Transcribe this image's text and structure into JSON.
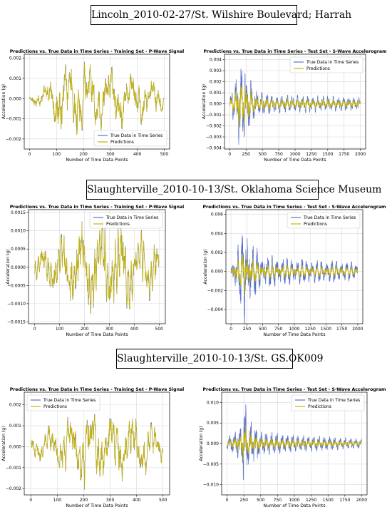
{
  "sections": [
    {
      "title": "Lincoln_2010-02-27/St. Wilshire Boulevard; Harrah"
    },
    {
      "title": "Slaughterville_2010-10-13/St. Oklahoma Science Museum"
    },
    {
      "title": "Slaughterville_2010-10-13/St. GS.OK009"
    }
  ],
  "colors": {
    "true": "#5a72c8",
    "pred": "#c8b400",
    "grid": "#d8d8d8"
  },
  "chart_data": [
    {
      "type": "line",
      "title": "Predictions vs. True Data in Time Series - Training Set - P-Wave Signal",
      "xlabel": "Number of Time Data Points",
      "ylabel": "Acceleration (g)",
      "xlim": [
        -20,
        520
      ],
      "ylim": [
        -0.0025,
        0.0022
      ],
      "xticks": [
        0,
        100,
        200,
        300,
        400,
        500
      ],
      "xtick_labels": [
        "0",
        "100",
        "200",
        "300",
        "400",
        "500"
      ],
      "yticks": [
        -0.002,
        -0.001,
        0,
        0.001,
        0.002
      ],
      "ytick_labels": [
        "−0.002",
        "−0.001",
        "0.000",
        "0.001",
        "0.002"
      ],
      "legend_position": "lower-right",
      "grid": true,
      "series": [
        {
          "name": "True Data in Time Series"
        },
        {
          "name": "Predictions"
        }
      ],
      "n_points": 500,
      "amp_envelope": [
        [
          0,
          0.0003
        ],
        [
          50,
          0.0006
        ],
        [
          100,
          0.0018
        ],
        [
          150,
          0.002
        ],
        [
          250,
          0.0017
        ],
        [
          350,
          0.0015
        ],
        [
          450,
          0.0012
        ],
        [
          500,
          0.0006
        ]
      ],
      "seed": 11,
      "pred_scale": 0.98
    },
    {
      "type": "line",
      "title": "Predictions vs. True Data in Time Series - Test Set - S-Wave Accelerogram",
      "xlabel": "Number of Time Data Points",
      "ylabel": "Acceleration (g)",
      "xlim": [
        -80,
        2080
      ],
      "ylim": [
        -0.0041,
        0.0045
      ],
      "xticks": [
        0,
        250,
        500,
        750,
        1000,
        1250,
        1500,
        1750,
        2000
      ],
      "xtick_labels": [
        "0",
        "250",
        "500",
        "750",
        "1000",
        "1250",
        "1500",
        "1750",
        "2000"
      ],
      "yticks": [
        -0.004,
        -0.003,
        -0.002,
        -0.001,
        0,
        0.001,
        0.002,
        0.003,
        0.004
      ],
      "ytick_labels": [
        "−0.004",
        "−0.003",
        "−0.002",
        "−0.001",
        "0.000",
        "0.001",
        "0.002",
        "0.003",
        "0.004"
      ],
      "legend_position": "top-right",
      "grid": true,
      "series": [
        {
          "name": "True Data in Time Series"
        },
        {
          "name": "Predictions"
        }
      ],
      "n_points": 2000,
      "amp_envelope": [
        [
          0,
          0.0006
        ],
        [
          80,
          0.002
        ],
        [
          150,
          0.0042
        ],
        [
          250,
          0.003
        ],
        [
          400,
          0.0012
        ],
        [
          700,
          0.0008
        ],
        [
          1200,
          0.0008
        ],
        [
          2000,
          0.0006
        ]
      ],
      "seed": 23,
      "pred_scale": 0.55
    },
    {
      "type": "line",
      "title": "Predictions vs. True Data in Time Series - Training Set - P-Wave Signal",
      "xlabel": "Number of Time Data Points",
      "ylabel": "Acceleration (g)",
      "xlim": [
        -25,
        525
      ],
      "ylim": [
        -0.00155,
        0.00158
      ],
      "xticks": [
        0,
        100,
        200,
        300,
        400,
        500
      ],
      "xtick_labels": [
        "0",
        "100",
        "200",
        "300",
        "400",
        "500"
      ],
      "yticks": [
        -0.0015,
        -0.001,
        -0.0005,
        0,
        0.0005,
        0.001,
        0.0015
      ],
      "ytick_labels": [
        "−0.0015",
        "−0.0010",
        "−0.0005",
        "0.0000",
        "0.0005",
        "0.0010",
        "0.0015"
      ],
      "legend_position": "top-right",
      "grid": true,
      "series": [
        {
          "name": "True Data in Time Series"
        },
        {
          "name": "Predictions"
        }
      ],
      "n_points": 500,
      "amp_envelope": [
        [
          0,
          0.0004
        ],
        [
          80,
          0.0008
        ],
        [
          200,
          0.0013
        ],
        [
          260,
          0.0014
        ],
        [
          400,
          0.0011
        ],
        [
          500,
          0.0008
        ]
      ],
      "seed": 37,
      "pred_scale": 0.96
    },
    {
      "type": "line",
      "title": "Predictions vs. True Data in Time Series - Test Set - S-Wave Accelerogram",
      "xlabel": "Number of Time Data Points",
      "ylabel": "Acceleration (g)",
      "xlim": [
        -80,
        2080
      ],
      "ylim": [
        -0.0055,
        0.0065
      ],
      "xticks": [
        0,
        250,
        500,
        750,
        1000,
        1250,
        1500,
        1750,
        2000
      ],
      "xtick_labels": [
        "0",
        "250",
        "500",
        "750",
        "1000",
        "1250",
        "1500",
        "1750",
        "2000"
      ],
      "yticks": [
        -0.004,
        -0.002,
        0,
        0.002,
        0.004,
        0.006
      ],
      "ytick_labels": [
        "−0.004",
        "−0.002",
        "0.000",
        "0.002",
        "0.004",
        "0.006"
      ],
      "legend_position": "top-right",
      "grid": true,
      "series": [
        {
          "name": "True Data in Time Series"
        },
        {
          "name": "Predictions"
        }
      ],
      "n_points": 2000,
      "amp_envelope": [
        [
          0,
          0.0008
        ],
        [
          120,
          0.003
        ],
        [
          200,
          0.0058
        ],
        [
          300,
          0.004
        ],
        [
          450,
          0.002
        ],
        [
          800,
          0.0015
        ],
        [
          1300,
          0.0012
        ],
        [
          2000,
          0.001
        ]
      ],
      "seed": 53,
      "pred_scale": 0.45
    },
    {
      "type": "line",
      "title": "Predictions vs. True Data in Time Series - Training Set - P-Wave Signal",
      "xlabel": "Number of Time Data Points",
      "ylabel": "Acceleration (g)",
      "xlim": [
        -25,
        525
      ],
      "ylim": [
        -0.0023,
        0.0026
      ],
      "xticks": [
        0,
        100,
        200,
        300,
        400,
        500
      ],
      "xtick_labels": [
        "0",
        "100",
        "200",
        "300",
        "400",
        "500"
      ],
      "yticks": [
        -0.002,
        -0.001,
        0,
        0.001,
        0.002
      ],
      "ytick_labels": [
        "−0.002",
        "−0.001",
        "0.000",
        "0.001",
        "0.002"
      ],
      "legend_position": "top-left",
      "grid": true,
      "series": [
        {
          "name": "True Data in Time Series"
        },
        {
          "name": "Predictions"
        }
      ],
      "n_points": 500,
      "amp_envelope": [
        [
          0,
          0.0006
        ],
        [
          100,
          0.0012
        ],
        [
          200,
          0.0022
        ],
        [
          300,
          0.0017
        ],
        [
          400,
          0.0016
        ],
        [
          500,
          0.0009
        ]
      ],
      "seed": 71,
      "pred_scale": 0.97
    },
    {
      "type": "line",
      "title": "Predictions vs. True Data in Time Series - Test Set - S-Wave Accelerogram",
      "xlabel": "Number of Time Data Points",
      "ylabel": "Acceleration (g)",
      "xlim": [
        -80,
        2080
      ],
      "ylim": [
        -0.0125,
        0.0125
      ],
      "xticks": [
        0,
        250,
        500,
        750,
        1000,
        1250,
        1500,
        1750,
        2000
      ],
      "xtick_labels": [
        "0",
        "250",
        "500",
        "750",
        "1000",
        "1250",
        "1500",
        "1750",
        "2000"
      ],
      "yticks": [
        -0.01,
        -0.005,
        0,
        0.005,
        0.01
      ],
      "ytick_labels": [
        "−0.010",
        "−0.005",
        "0.000",
        "0.005",
        "0.010"
      ],
      "legend_position": "top-right",
      "grid": true,
      "series": [
        {
          "name": "True Data in Time Series"
        },
        {
          "name": "Predictions"
        }
      ],
      "n_points": 2000,
      "amp_envelope": [
        [
          0,
          0.0015
        ],
        [
          200,
          0.004
        ],
        [
          260,
          0.011
        ],
        [
          320,
          0.006
        ],
        [
          500,
          0.003
        ],
        [
          900,
          0.0022
        ],
        [
          1400,
          0.0018
        ],
        [
          2000,
          0.0012
        ]
      ],
      "seed": 97,
      "pred_scale": 0.45
    }
  ]
}
